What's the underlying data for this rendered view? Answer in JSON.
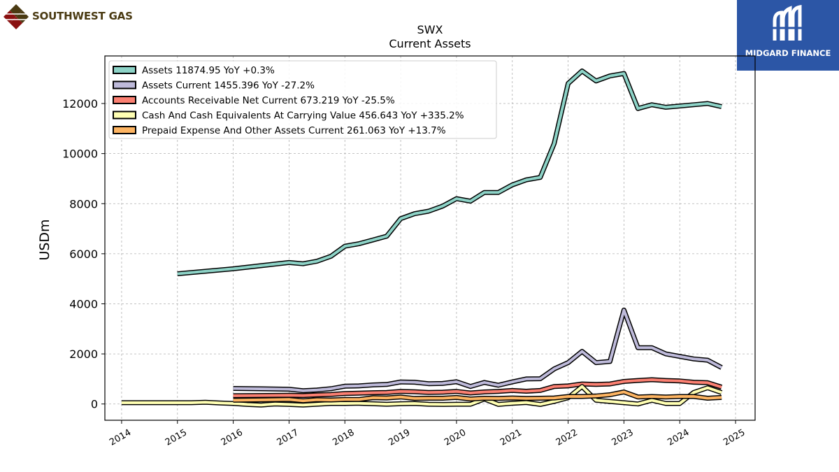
{
  "branding": {
    "left_logo_text": "SOUTHWEST GAS",
    "right_logo_text": "MIDGARD FINANCE",
    "right_logo_bg": "#2c56a6",
    "left_logo_color": "#4a3a12",
    "left_logo_accent": "#8a1010"
  },
  "chart_data": {
    "type": "line",
    "title": "SWX",
    "subtitle": "Current  Assets",
    "ylabel": "USDm",
    "xlabel": "",
    "xlim": [
      2013.7,
      2025.35
    ],
    "ylim": [
      -650,
      13900
    ],
    "yticks": [
      0,
      2000,
      4000,
      6000,
      8000,
      10000,
      12000
    ],
    "xticks": [
      2014,
      2015,
      2016,
      2017,
      2018,
      2019,
      2020,
      2021,
      2022,
      2023,
      2024,
      2025
    ],
    "grid": true,
    "legend_position": "top-left",
    "series": [
      {
        "name": "Assets",
        "legend_label": "Assets  11874.95 YoY +0.3%",
        "color": "#8dd3c7",
        "x": [
          2015.0,
          2016.0,
          2017.0,
          2017.25,
          2017.5,
          2017.75,
          2018.0,
          2018.25,
          2018.5,
          2018.75,
          2019.0,
          2019.25,
          2019.5,
          2019.75,
          2020.0,
          2020.25,
          2020.5,
          2020.75,
          2021.0,
          2021.25,
          2021.5,
          2021.75,
          2022.0,
          2022.25,
          2022.5,
          2022.75,
          2023.0,
          2023.25,
          2023.5,
          2023.75,
          2024.0,
          2024.25,
          2024.5,
          2024.75
        ],
        "y": [
          5200,
          5400,
          5650,
          5600,
          5700,
          5900,
          6300,
          6400,
          6550,
          6700,
          7400,
          7600,
          7700,
          7900,
          8200,
          8100,
          8450,
          8450,
          8750,
          8950,
          9050,
          10400,
          12800,
          13300,
          12900,
          13100,
          13200,
          11800,
          11950,
          11850,
          11900,
          11950,
          12000,
          11875
        ]
      },
      {
        "name": "Assets Current",
        "legend_label": "Assets Current  1455.396 YoY -27.2%",
        "color": "#bebada",
        "x": [
          2016.0,
          2017.0,
          2017.25,
          2017.5,
          2017.75,
          2018.0,
          2018.25,
          2018.5,
          2018.75,
          2019.0,
          2019.25,
          2019.5,
          2019.75,
          2020.0,
          2020.25,
          2020.5,
          2020.75,
          2021.0,
          2021.25,
          2021.5,
          2021.75,
          2022.0,
          2022.25,
          2022.5,
          2022.75,
          2023.0,
          2023.25,
          2023.5,
          2023.75,
          2024.0,
          2024.25,
          2024.5,
          2024.75
        ],
        "y": [
          620,
          590,
          530,
          560,
          610,
          710,
          720,
          760,
          780,
          880,
          870,
          810,
          820,
          890,
          700,
          860,
          750,
          880,
          1000,
          1010,
          1400,
          1650,
          2100,
          1650,
          1700,
          3750,
          2250,
          2250,
          2000,
          1900,
          1800,
          1750,
          1455
        ]
      },
      {
        "name": "Accounts Receivable Net Current",
        "legend_label": "Accounts Receivable Net Current  673.219 YoY -25.5%",
        "color": "#fb8072",
        "x": [
          2016.0,
          2017.0,
          2017.25,
          2017.5,
          2017.75,
          2018.0,
          2018.25,
          2018.5,
          2018.75,
          2019.0,
          2019.25,
          2019.5,
          2019.75,
          2020.0,
          2020.25,
          2020.5,
          2020.75,
          2021.0,
          2021.25,
          2021.5,
          2021.75,
          2022.0,
          2022.25,
          2022.5,
          2022.75,
          2023.0,
          2023.25,
          2023.5,
          2023.75,
          2024.0,
          2024.25,
          2024.5,
          2024.75
        ],
        "y": [
          330,
          350,
          340,
          360,
          380,
          420,
          430,
          450,
          460,
          500,
          490,
          460,
          470,
          500,
          440,
          480,
          500,
          540,
          510,
          540,
          700,
          720,
          800,
          780,
          800,
          900,
          940,
          970,
          940,
          920,
          870,
          850,
          673
        ]
      },
      {
        "name": "Cash And Cash Equivalents At Carrying Value",
        "legend_label": "Cash And Cash Equivalents At Carrying Value  456.643 YoY +335.2%",
        "color": "#ffffb3",
        "x": [
          2014.0,
          2015.0,
          2015.25,
          2015.5,
          2015.75,
          2016.0,
          2016.25,
          2016.5,
          2016.75,
          2017.0,
          2017.25,
          2017.5,
          2017.75,
          2018.0,
          2018.25,
          2018.5,
          2018.75,
          2019.0,
          2019.25,
          2019.5,
          2019.75,
          2020.0,
          2020.25,
          2020.5,
          2020.75,
          2021.0,
          2021.25,
          2021.5,
          2021.75,
          2022.0,
          2022.25,
          2022.5,
          2022.75,
          2023.0,
          2023.25,
          2023.5,
          2023.75,
          2024.0,
          2024.25,
          2024.5,
          2024.75
        ],
        "y": [
          50,
          50,
          50,
          70,
          40,
          20,
          -20,
          -40,
          0,
          -20,
          -40,
          -10,
          20,
          20,
          30,
          10,
          -10,
          10,
          20,
          -10,
          -20,
          -10,
          -10,
          200,
          -20,
          30,
          60,
          -20,
          100,
          250,
          700,
          150,
          100,
          50,
          0,
          150,
          20,
          20,
          460,
          650,
          457
        ]
      },
      {
        "name": "Prepaid Expense And Other Assets Current",
        "legend_label": "Prepaid Expense And Other Assets Current  261.063 YoY +13.7%",
        "color": "#fdb462",
        "x": [
          2016.0,
          2017.0,
          2017.25,
          2017.5,
          2017.75,
          2018.0,
          2018.25,
          2018.5,
          2018.75,
          2019.0,
          2019.25,
          2019.5,
          2019.75,
          2020.0,
          2020.25,
          2020.5,
          2020.75,
          2021.0,
          2021.25,
          2021.5,
          2021.75,
          2022.0,
          2022.25,
          2022.5,
          2022.75,
          2023.0,
          2023.25,
          2023.5,
          2023.75,
          2024.0,
          2024.25,
          2024.5,
          2024.75
        ],
        "y": [
          150,
          180,
          130,
          170,
          160,
          180,
          180,
          250,
          240,
          280,
          220,
          230,
          230,
          260,
          200,
          230,
          220,
          240,
          220,
          230,
          240,
          300,
          300,
          320,
          370,
          480,
          280,
          300,
          280,
          300,
          300,
          230,
          261
        ]
      }
    ]
  }
}
